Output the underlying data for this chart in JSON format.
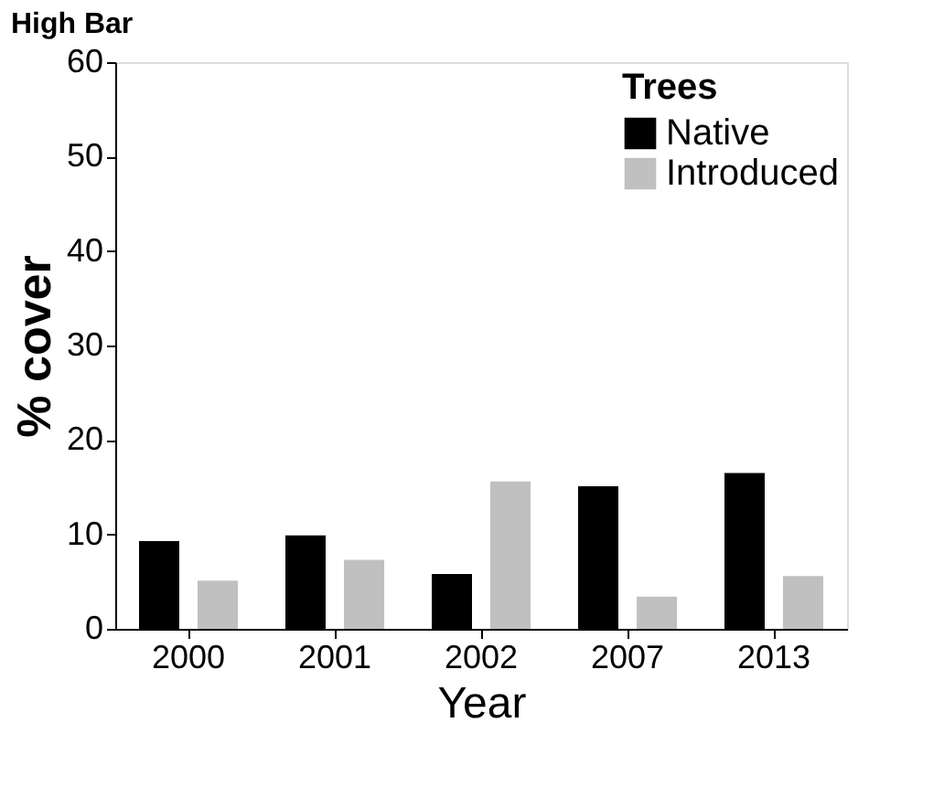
{
  "chart_data": {
    "type": "bar",
    "title": "High Bar",
    "xlabel": "Year",
    "ylabel": "% cover",
    "legend_title": "Trees",
    "categories": [
      "2000",
      "2001",
      "2002",
      "2007",
      "2013"
    ],
    "series": [
      {
        "name": "Native",
        "color": "#000000",
        "values": [
          9.3,
          9.9,
          5.8,
          15.1,
          16.5
        ]
      },
      {
        "name": "Introduced",
        "color": "#c0c0c0",
        "values": [
          5.1,
          7.3,
          15.6,
          3.4,
          5.6
        ]
      }
    ],
    "ylim": [
      0,
      60
    ],
    "yticks": [
      0,
      10,
      20,
      30,
      40,
      50,
      60
    ],
    "grid": false,
    "legend": "top right"
  }
}
